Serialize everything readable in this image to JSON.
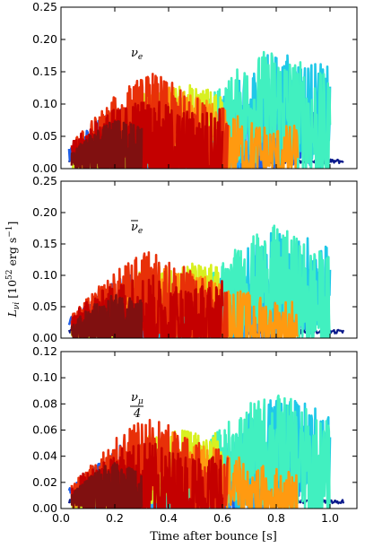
{
  "chart_data": {
    "type": "line",
    "xlabel": "Time after bounce [s]",
    "ylabel": "L_νi [10^52 erg s^-1]",
    "ylabel_parts": {
      "main": "L",
      "sub": "νi",
      "unit": "[10",
      "exp": "52",
      "unit2": " erg s",
      "exp2": "−1",
      "close": "]"
    },
    "xlim": [
      0.0,
      1.1
    ],
    "xticks": [
      "0.0",
      "0.2",
      "0.4",
      "0.6",
      "0.8",
      "1.0"
    ],
    "xtick_values": [
      0.0,
      0.2,
      0.4,
      0.6,
      0.8,
      1.0
    ],
    "grid": false,
    "series_meta": [
      {
        "color": "#0b1a8c",
        "start": 0.03,
        "end": 1.05,
        "rise": 0.05,
        "plateau": 0.12,
        "noise": 0.08
      },
      {
        "color": "#1f5fe8",
        "start": 0.03,
        "end": 0.95,
        "rise": 0.25,
        "plateau": 0.55,
        "noise": 0.45
      },
      {
        "color": "#2ea8f5",
        "start": 0.04,
        "end": 0.9,
        "rise": 0.3,
        "plateau": 0.45,
        "noise": 0.5
      },
      {
        "color": "#1fc8e8",
        "start": 0.35,
        "end": 1.0,
        "rise": 0.4,
        "plateau": 0.6,
        "noise": 0.8
      },
      {
        "color": "#41f0c0",
        "start": 0.38,
        "end": 1.0,
        "rise": 0.42,
        "plateau": 0.7,
        "noise": 0.95
      },
      {
        "color": "#d8f020",
        "start": 0.04,
        "end": 0.6,
        "rise": 0.25,
        "plateau": 0.45,
        "noise": 0.55
      },
      {
        "color": "#ff9a10",
        "start": 0.04,
        "end": 0.88,
        "rise": 0.35,
        "plateau": 0.5,
        "noise": 0.5
      },
      {
        "color": "#e83008",
        "start": 0.04,
        "end": 0.62,
        "rise": 0.3,
        "plateau": 0.65,
        "noise": 0.7
      },
      {
        "color": "#c40000",
        "start": 0.04,
        "end": 0.6,
        "rise": 0.28,
        "plateau": 0.6,
        "noise": 0.7
      },
      {
        "color": "#801010",
        "start": 0.04,
        "end": 0.3,
        "rise": 0.15,
        "plateau": 0.45,
        "noise": 0.5
      }
    ],
    "panels": [
      {
        "label": "ν_e",
        "label_main": "ν",
        "label_sub": "e",
        "bar": false,
        "ylim": [
          0.0,
          0.25
        ],
        "yticks": [
          "0.00",
          "0.05",
          "0.10",
          "0.15",
          "0.20",
          "0.25"
        ],
        "ytick_values": [
          0.0,
          0.05,
          0.1,
          0.15,
          0.2,
          0.25
        ],
        "scale": 0.16
      },
      {
        "label": "ν̄_e",
        "label_main": "ν",
        "label_sub": "e",
        "bar": true,
        "ylim": [
          0.0,
          0.25
        ],
        "yticks": [
          "0.00",
          "0.05",
          "0.10",
          "0.15",
          "0.20",
          "0.25"
        ],
        "ytick_values": [
          0.0,
          0.05,
          0.1,
          0.15,
          0.2,
          0.25
        ],
        "scale": 0.15
      },
      {
        "label": "ν_μ / 4",
        "label_main": "ν",
        "label_sub": "μ",
        "label_den": "4",
        "bar": false,
        "ylim": [
          0.0,
          0.12
        ],
        "yticks": [
          "0.00",
          "0.02",
          "0.04",
          "0.06",
          "0.08",
          "0.10",
          "0.12"
        ],
        "ytick_values": [
          0.0,
          0.02,
          0.04,
          0.06,
          0.08,
          0.1,
          0.12
        ],
        "scale": 0.075
      }
    ]
  }
}
